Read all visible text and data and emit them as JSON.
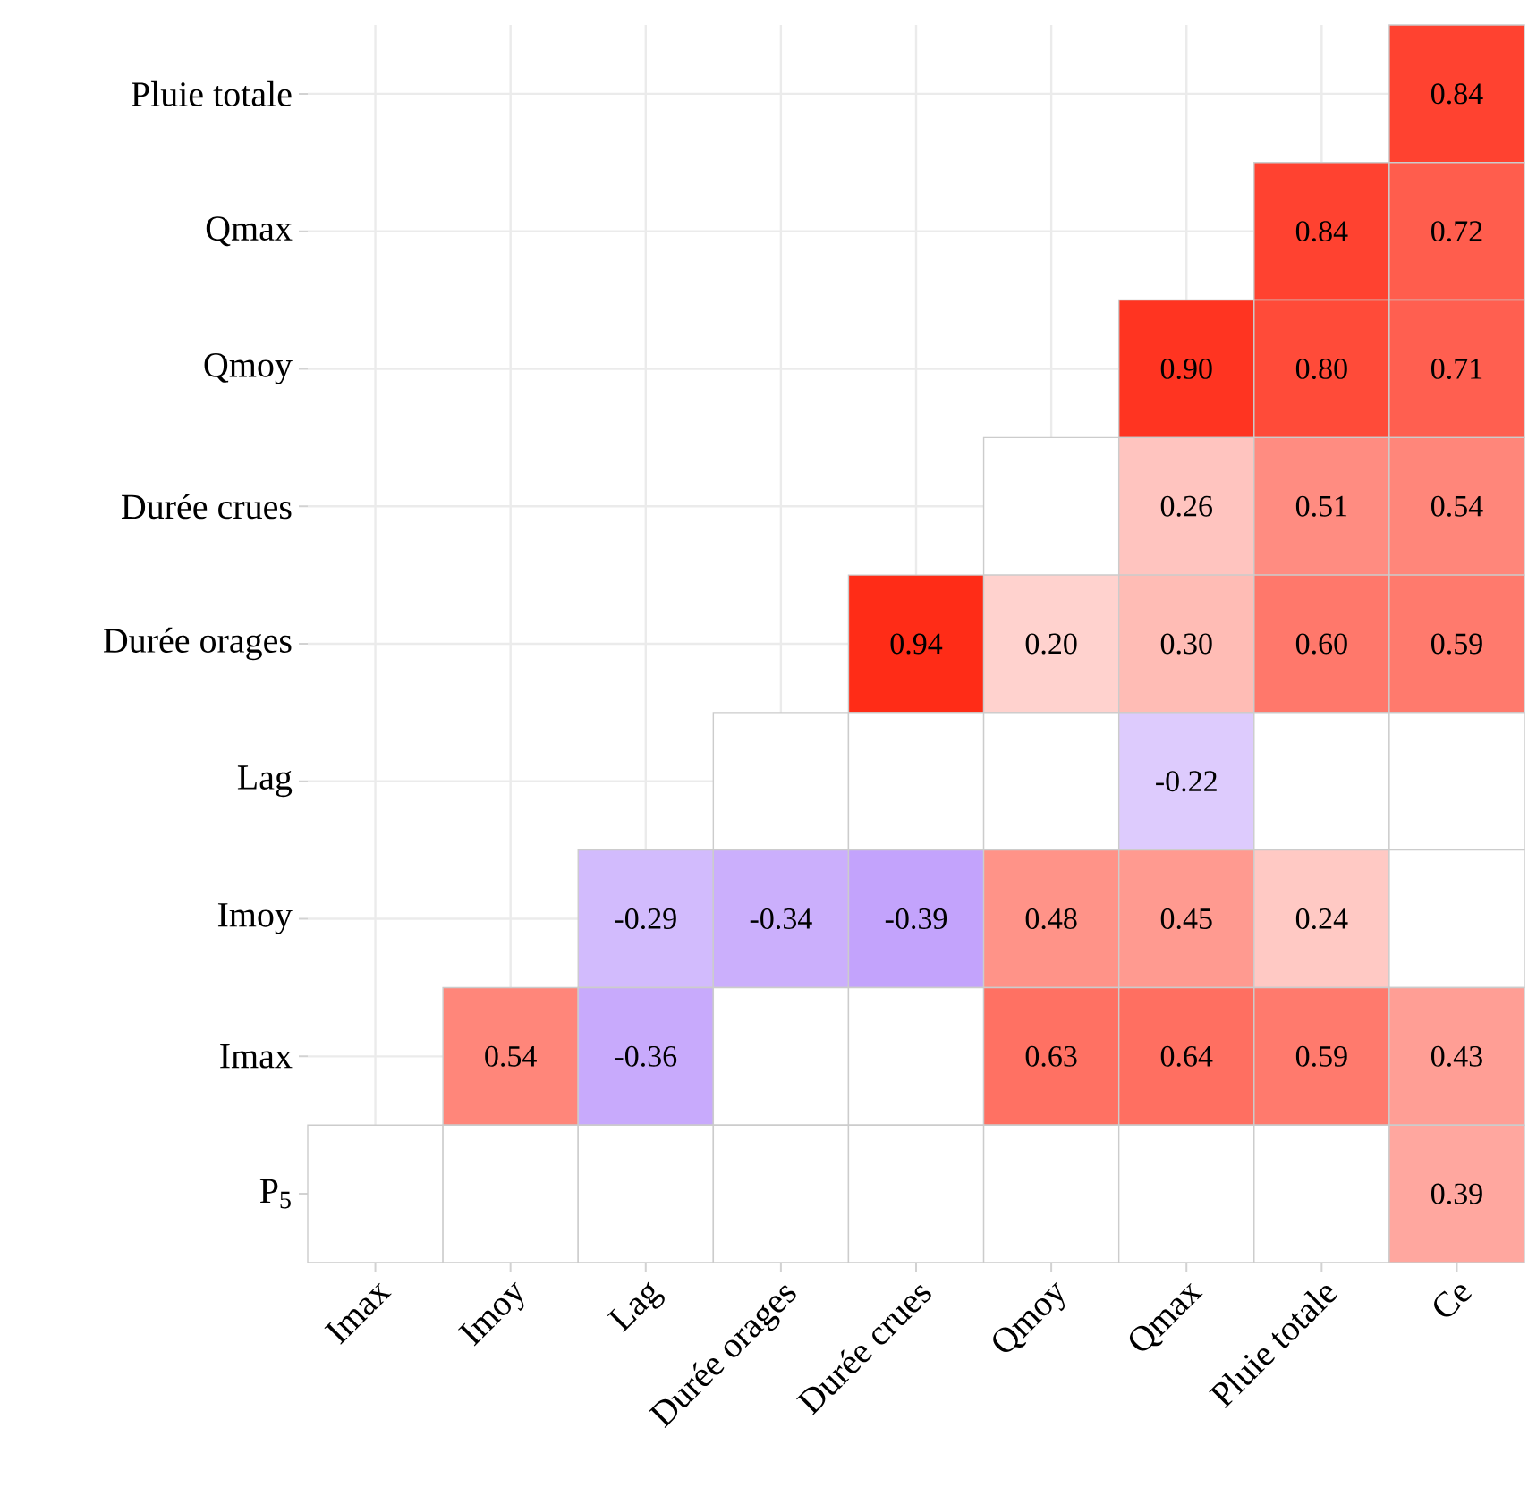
{
  "chart_data": {
    "type": "heatmap",
    "grid": true,
    "categories": [
      "Imax",
      "Imoy",
      "Lag",
      "Durée orages",
      "Durée crues",
      "Qmoy",
      "Qmax",
      "Pluie totale",
      "Ce"
    ],
    "y_categories": [
      "Pluie totale",
      "Qmax",
      "Qmoy",
      "Durée crues",
      "Durée orages",
      "Lag",
      "Imoy",
      "Imax",
      "P$_{5}$"
    ],
    "cells": [
      [
        null,
        null,
        null,
        null,
        null,
        null,
        null,
        null,
        0.84
      ],
      [
        null,
        null,
        null,
        null,
        null,
        null,
        null,
        0.84,
        0.72
      ],
      [
        null,
        null,
        null,
        null,
        null,
        null,
        0.9,
        0.8,
        0.71
      ],
      [
        null,
        null,
        null,
        null,
        null,
        null,
        0.26,
        0.51,
        0.54
      ],
      [
        null,
        null,
        null,
        null,
        0.94,
        0.2,
        0.3,
        0.6,
        0.59
      ],
      [
        null,
        null,
        null,
        null,
        null,
        null,
        -0.22,
        null,
        null
      ],
      [
        null,
        null,
        -0.29,
        -0.34,
        -0.39,
        0.48,
        0.45,
        0.24,
        null
      ],
      [
        null,
        0.54,
        -0.36,
        null,
        null,
        0.63,
        0.64,
        0.59,
        0.43
      ],
      [
        null,
        null,
        null,
        null,
        null,
        null,
        null,
        null,
        0.39
      ]
    ],
    "cell_labels": [
      [
        null,
        null,
        null,
        null,
        null,
        null,
        null,
        null,
        "0.84"
      ],
      [
        null,
        null,
        null,
        null,
        null,
        null,
        null,
        "0.84",
        "0.72"
      ],
      [
        null,
        null,
        null,
        null,
        null,
        null,
        "0.90",
        "0.80",
        "0.71"
      ],
      [
        null,
        null,
        null,
        null,
        null,
        null,
        "0.26",
        "0.51",
        "0.54"
      ],
      [
        null,
        null,
        null,
        null,
        "0.94",
        "0.20",
        "0.30",
        "0.60",
        "0.59"
      ],
      [
        null,
        null,
        null,
        null,
        null,
        null,
        "-0.22",
        null,
        null
      ],
      [
        null,
        null,
        "-0.29",
        "-0.34",
        "-0.39",
        "0.48",
        "0.45",
        "0.24",
        null
      ],
      [
        null,
        "0.54",
        "-0.36",
        null,
        null,
        "0.63",
        "0.64",
        "0.59",
        "0.43"
      ],
      [
        null,
        null,
        null,
        null,
        null,
        null,
        null,
        null,
        "0.39"
      ]
    ]
  }
}
